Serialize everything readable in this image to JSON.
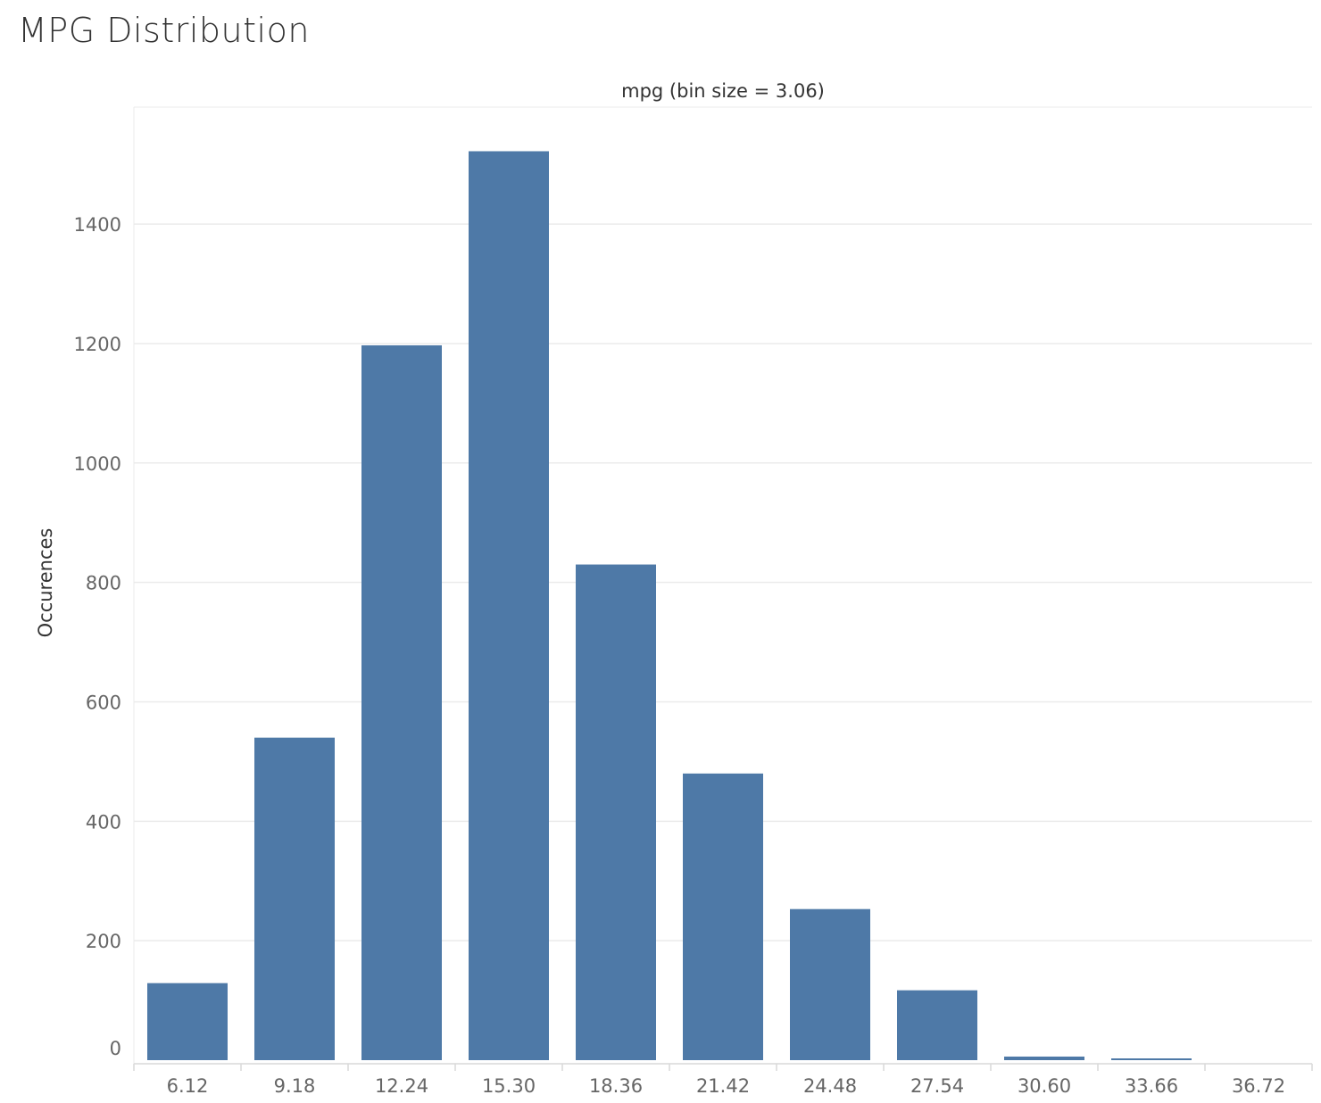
{
  "title": "MPG Distribution",
  "colors": {
    "bar": "#4e79a7",
    "grid": "#ebebeb",
    "axis": "#d9d9d9"
  },
  "chart_data": {
    "type": "bar",
    "title": "MPG Distribution",
    "xlabel": "mpg (bin size = 3.06)",
    "ylabel": "Occurences",
    "categories": [
      "6.12",
      "9.18",
      "12.24",
      "15.30",
      "18.36",
      "21.42",
      "24.48",
      "27.54",
      "30.60",
      "33.66",
      "36.72"
    ],
    "values": [
      129,
      540,
      1197,
      1522,
      830,
      480,
      253,
      117,
      6,
      1,
      0
    ],
    "yticks": [
      0,
      200,
      400,
      600,
      800,
      1000,
      1200,
      1400
    ],
    "ylim": [
      0,
      1600
    ],
    "grid": true
  }
}
